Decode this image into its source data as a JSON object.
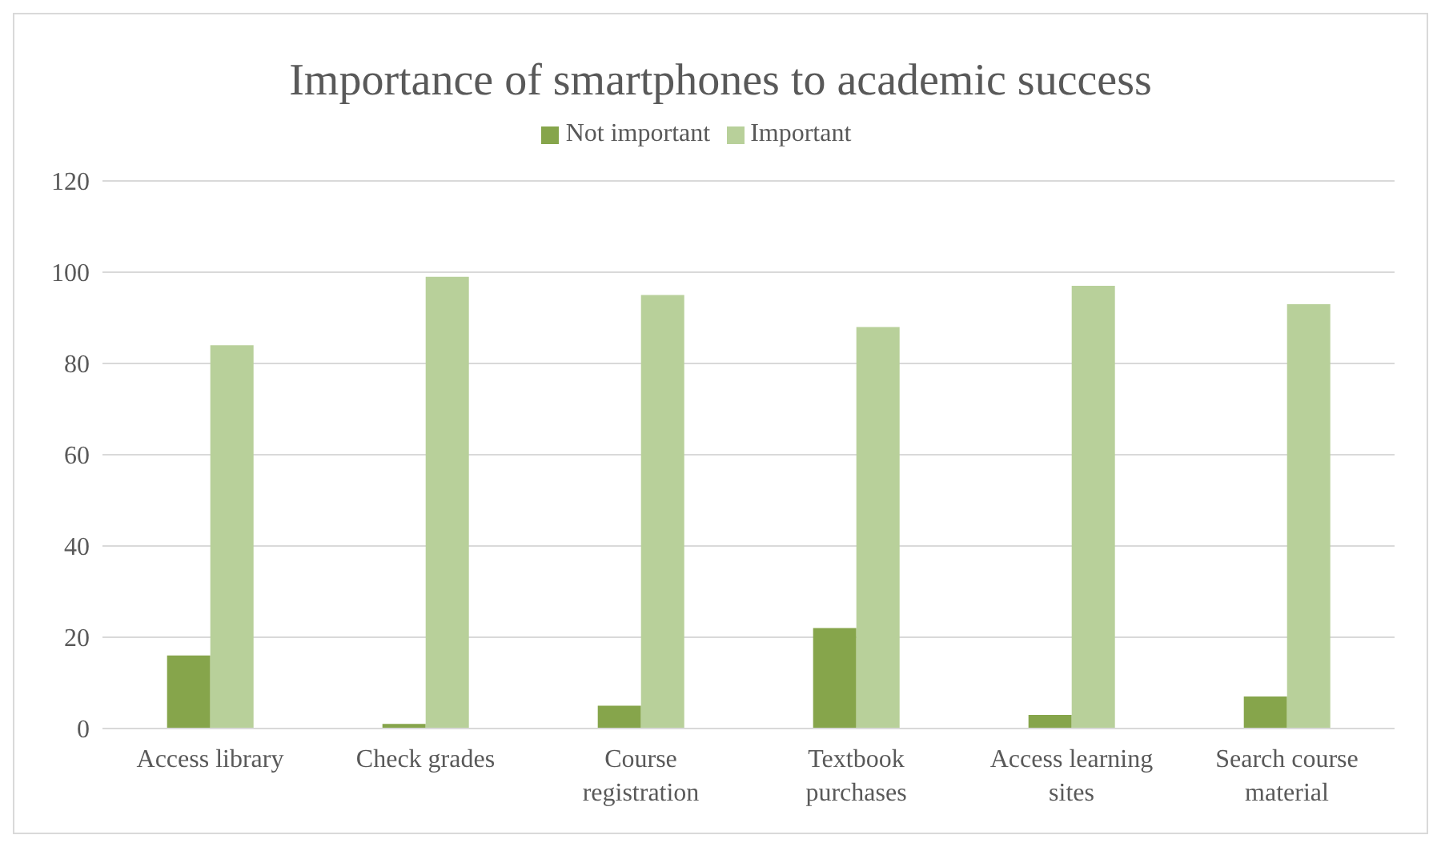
{
  "chart_data": {
    "type": "bar",
    "title": "Importance of smartphones to academic success",
    "categories": [
      "Access library",
      "Check grades",
      "Course registration",
      "Textbook purchases",
      "Access learning sites",
      "Search course material"
    ],
    "series": [
      {
        "name": "Not important",
        "color": "#86a54b",
        "values": [
          16,
          1,
          5,
          22,
          3,
          7
        ]
      },
      {
        "name": "Important",
        "color": "#b8d09a",
        "values": [
          84,
          99,
          95,
          88,
          97,
          93
        ]
      }
    ],
    "ylim": [
      0,
      120
    ],
    "yticks": [
      0,
      20,
      40,
      60,
      80,
      100,
      120
    ],
    "grid": "y",
    "legend": "top"
  }
}
